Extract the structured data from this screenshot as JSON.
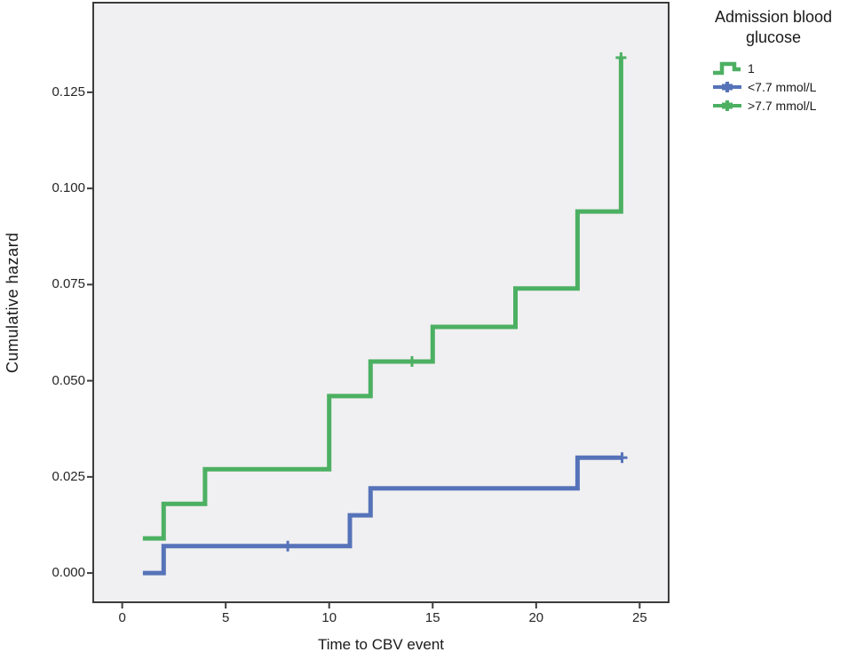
{
  "chart_data": {
    "type": "line",
    "subtype": "step-cumulative-hazard",
    "title": "",
    "xlabel": "Time to CBV event",
    "ylabel": "Cumulative hazard",
    "xlim": [
      -1.4,
      26.4
    ],
    "ylim": [
      -0.0076,
      0.1483
    ],
    "grid": false,
    "legend_position": "right",
    "plot_bg": "#f0eff1",
    "frame_color": "#3c3c3c",
    "text_color": "#262626",
    "x_ticks": {
      "values": [
        0,
        5,
        10,
        15,
        20,
        25
      ],
      "labels": [
        "0",
        "5",
        "10",
        "15",
        "20",
        "25"
      ]
    },
    "y_ticks": {
      "values": [
        0.0,
        0.025,
        0.05,
        0.075,
        0.1,
        0.125
      ],
      "labels": [
        "0.000",
        "0.025",
        "0.050",
        "0.075",
        "0.100",
        "0.125"
      ]
    },
    "series": [
      {
        "name": ">7.7 mmol/L",
        "color": "#4cb062",
        "points": [
          [
            1,
            0.009
          ],
          [
            2,
            0.018
          ],
          [
            4,
            0.027
          ],
          [
            10,
            0.046
          ],
          [
            12,
            0.055
          ],
          [
            15,
            0.064
          ],
          [
            19,
            0.074
          ],
          [
            22,
            0.094
          ],
          [
            24.1,
            0.134
          ]
        ],
        "end_t": null,
        "censored": [
          [
            14,
            0.055
          ],
          [
            24.1,
            0.134
          ]
        ]
      },
      {
        "name": "<7.7 mmol/L",
        "color": "#5673b9",
        "points": [
          [
            1,
            0.0
          ],
          [
            2,
            0.007
          ],
          [
            11,
            0.015
          ],
          [
            12,
            0.022
          ],
          [
            22,
            0.03
          ]
        ],
        "end_t": 24.15,
        "censored": [
          [
            8,
            0.007
          ],
          [
            24.15,
            0.03
          ]
        ]
      }
    ],
    "legend": {
      "title": "Admission blood glucose",
      "items": [
        {
          "label": "1",
          "glyph": "step",
          "color": "#4cb062"
        },
        {
          "label": "<7.7 mmol/L",
          "glyph": "plus-line",
          "color": "#5673b9"
        },
        {
          "label": ">7.7 mmol/L",
          "glyph": "plus-line",
          "color": "#4cb062"
        }
      ]
    }
  }
}
